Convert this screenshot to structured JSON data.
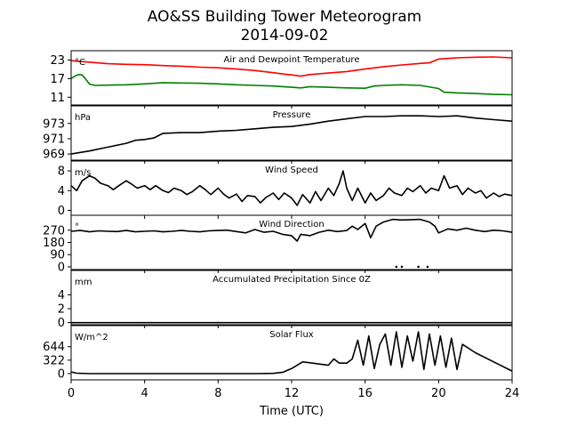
{
  "chart_data": {
    "type": "line",
    "title": "AO&SS Building Tower Meteorogram",
    "subtitle": "2014-09-02",
    "xlabel": "Time (UTC)",
    "xlim": [
      0,
      24
    ],
    "xticks": [
      0,
      4,
      8,
      12,
      16,
      20,
      24
    ],
    "xtick_labels": [
      "0",
      "4",
      "8",
      "12",
      "16",
      "20",
      "24"
    ],
    "panels": [
      {
        "title": "Air and Dewpoint Temperature",
        "unit": "°C",
        "ylim": [
          8.5,
          26
        ],
        "yticks": [
          11,
          17,
          23
        ],
        "ytick_labels": [
          "11",
          "17",
          "23"
        ],
        "series": [
          {
            "name": "",
            "color": "#ff0000",
            "x": [
              0,
              1,
              2,
              3,
              4,
              5,
              6,
              7,
              8,
              9,
              10,
              11,
              11.5,
              12,
              12.5,
              13,
              14,
              15,
              16,
              17,
              18,
              19,
              19.5,
              20,
              21,
              22,
              23,
              24
            ],
            "y": [
              22.8,
              22.3,
              21.8,
              21.6,
              21.5,
              21.2,
              21.0,
              20.7,
              20.5,
              20.1,
              19.6,
              18.9,
              18.5,
              18.2,
              17.8,
              18.3,
              18.8,
              19.3,
              20.1,
              20.8,
              21.4,
              21.9,
              22.1,
              23.3,
              23.7,
              23.9,
              24.0,
              23.7
            ]
          },
          {
            "name": "",
            "color": "#008000",
            "x": [
              0,
              0.2,
              0.4,
              0.6,
              0.8,
              1.0,
              1.3,
              2,
              3,
              4,
              5,
              6,
              7,
              8,
              9,
              10,
              11,
              12,
              12.5,
              13,
              14,
              15,
              16,
              16.5,
              17,
              18,
              19,
              20,
              20.3,
              21,
              22,
              23,
              24
            ],
            "y": [
              17.0,
              17.8,
              18.3,
              18.2,
              16.8,
              15.2,
              14.8,
              14.9,
              15.0,
              15.3,
              15.7,
              15.6,
              15.5,
              15.3,
              15.0,
              14.8,
              14.6,
              14.2,
              14.0,
              14.4,
              14.2,
              14.0,
              13.9,
              14.6,
              14.8,
              15.0,
              14.8,
              13.8,
              12.6,
              12.4,
              12.2,
              11.9,
              11.8
            ]
          }
        ]
      },
      {
        "title": "Pressure",
        "unit": "hPa",
        "ylim": [
          968.2,
          975.3
        ],
        "yticks": [
          969,
          971,
          973
        ],
        "ytick_labels": [
          "969",
          "971",
          "973"
        ],
        "series": [
          {
            "name": "",
            "color": "#000000",
            "x": [
              0,
              1,
              2,
              3,
              3.5,
              4,
              4.5,
              5,
              6,
              7,
              8,
              9,
              10,
              11,
              12,
              13,
              14,
              15,
              16,
              17,
              18,
              19,
              20,
              21,
              22,
              23,
              24
            ],
            "y": [
              969.0,
              969.4,
              969.9,
              970.4,
              970.8,
              970.9,
              971.1,
              971.7,
              971.8,
              971.8,
              972.0,
              972.1,
              972.3,
              972.5,
              972.6,
              972.9,
              973.3,
              973.6,
              973.9,
              973.9,
              974.0,
              974.0,
              973.9,
              974.0,
              973.7,
              973.5,
              973.3
            ]
          }
        ]
      },
      {
        "title": "Wind Speed",
        "unit": "m/s",
        "ylim": [
          -1,
          10
        ],
        "yticks": [
          0,
          4,
          8
        ],
        "ytick_labels": [
          "0",
          "4",
          "8"
        ],
        "series": [
          {
            "name": "",
            "color": "#000000",
            "x": [
              0,
              0.3,
              0.6,
              1,
              1.3,
              1.6,
              2,
              2.3,
              2.6,
              3,
              3.3,
              3.6,
              4,
              4.3,
              4.6,
              5,
              5.3,
              5.6,
              6,
              6.3,
              6.6,
              7,
              7.3,
              7.6,
              8,
              8.3,
              8.6,
              9,
              9.3,
              9.6,
              10,
              10.3,
              10.6,
              11,
              11.3,
              11.6,
              12,
              12.3,
              12.6,
              13,
              13.3,
              13.6,
              14,
              14.3,
              14.6,
              14.8,
              15,
              15.3,
              15.6,
              16,
              16.3,
              16.6,
              17,
              17.3,
              17.6,
              18,
              18.3,
              18.6,
              19,
              19.3,
              19.6,
              20,
              20.3,
              20.6,
              21,
              21.3,
              21.6,
              22,
              22.3,
              22.6,
              23,
              23.3,
              23.6,
              24
            ],
            "y": [
              5,
              4,
              6,
              7,
              6.5,
              5.5,
              5,
              4.2,
              5,
              6,
              5.3,
              4.5,
              5,
              4.2,
              5,
              4,
              3.6,
              4.5,
              4,
              3.2,
              3.8,
              5,
              4.2,
              3.2,
              4.5,
              3.3,
              2.5,
              3.3,
              1.8,
              3,
              2.8,
              1.5,
              2.6,
              3.5,
              2.2,
              3.5,
              2.5,
              1,
              3.2,
              1.5,
              3.8,
              2,
              4.5,
              3,
              5.5,
              8,
              4.5,
              2,
              4.5,
              1.5,
              3.5,
              2,
              3,
              4.5,
              3.5,
              3,
              4.5,
              3.8,
              5,
              3.5,
              4.5,
              4,
              7,
              4.5,
              5,
              3.2,
              4.5,
              3.5,
              4,
              2.5,
              3.5,
              2.8,
              3.3,
              3
            ]
          }
        ]
      },
      {
        "title": "Wind Direction",
        "unit": "°",
        "ylim": [
          -20,
          380
        ],
        "yticks": [
          0,
          90,
          180,
          270
        ],
        "ytick_labels": [
          "0",
          "90",
          "180",
          "270"
        ],
        "series": [
          {
            "name": "",
            "color": "#000000",
            "x": [
              0,
              0.5,
              1,
              1.5,
              2,
              2.5,
              3,
              3.5,
              4,
              4.5,
              5,
              5.5,
              6,
              6.5,
              7,
              7.5,
              8,
              8.5,
              9,
              9.5,
              10,
              10.5,
              11,
              11.5,
              12,
              12.3,
              12.5,
              13,
              13.5,
              14,
              14.5,
              15,
              15.3,
              15.6,
              16,
              16.3,
              16.6,
              17,
              17.5,
              18,
              18.5,
              19,
              19.5,
              19.8,
              20,
              20.5,
              21,
              21.5,
              22,
              22.5,
              23,
              23.5,
              24
            ],
            "y": [
              262,
              268,
              258,
              265,
              262,
              260,
              268,
              258,
              262,
              265,
              258,
              262,
              268,
              262,
              258,
              265,
              268,
              270,
              260,
              250,
              275,
              255,
              262,
              240,
              230,
              190,
              240,
              230,
              255,
              270,
              260,
              268,
              300,
              275,
              320,
              215,
              300,
              330,
              350,
              345,
              348,
              350,
              330,
              300,
              250,
              280,
              270,
              285,
              270,
              260,
              270,
              265,
              255
            ]
          },
          {
            "name": "",
            "color": "#000000",
            "x": [
              17.7,
              18.0,
              18.9,
              19.4
            ],
            "y": [
              0,
              0,
              0,
              0
            ]
          }
        ]
      },
      {
        "title": "Accumulated Precipitation Since 0Z",
        "unit": "mm",
        "ylim": [
          -0.3,
          7.5
        ],
        "yticks": [
          0,
          2,
          4
        ],
        "ytick_labels": [
          "0",
          "2",
          "4"
        ],
        "series": [
          {
            "name": "",
            "color": "#000000",
            "x": [
              0,
              24
            ],
            "y": [
              0,
              0
            ]
          }
        ]
      },
      {
        "title": "Solar Flux",
        "unit": "W/m^2",
        "ylim": [
          -150,
          1150
        ],
        "yticks": [
          0,
          322,
          644
        ],
        "ytick_labels": [
          "0",
          "322",
          "644"
        ],
        "series": [
          {
            "name": "",
            "color": "#000000",
            "x": [
              0,
              0.3,
              1,
              2,
              4,
              6,
              8,
              10,
              11,
              11.5,
              12,
              12.3,
              12.6,
              13,
              13.5,
              14,
              14.3,
              14.6,
              15,
              15.3,
              15.6,
              15.9,
              16.2,
              16.5,
              16.8,
              17.1,
              17.4,
              17.7,
              18.0,
              18.3,
              18.6,
              18.9,
              19.2,
              19.5,
              19.8,
              20.1,
              20.4,
              20.7,
              21.0,
              21.3,
              22,
              23,
              24
            ],
            "y": [
              40,
              10,
              0,
              0,
              0,
              0,
              0,
              0,
              5,
              30,
              120,
              200,
              280,
              260,
              230,
              200,
              350,
              250,
              250,
              350,
              800,
              200,
              900,
              120,
              700,
              950,
              200,
              1000,
              150,
              900,
              300,
              1000,
              100,
              950,
              200,
              900,
              150,
              850,
              100,
              700,
              500,
              280,
              60
            ]
          }
        ]
      }
    ]
  }
}
